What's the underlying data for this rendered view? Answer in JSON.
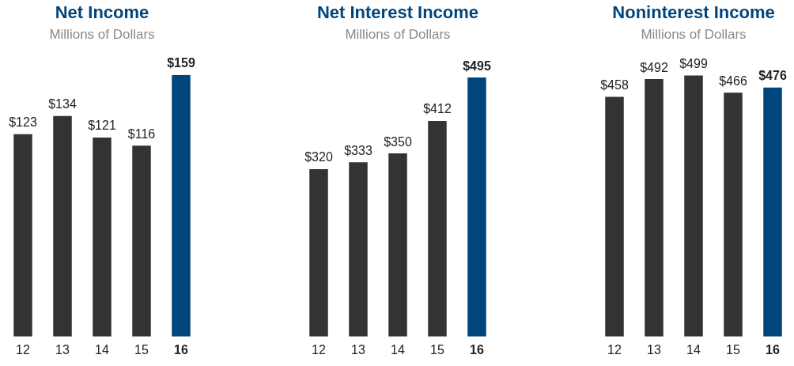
{
  "chart_data": [
    {
      "type": "bar",
      "title": "Net Income",
      "subtitle": "Millions of Dollars",
      "categories": [
        "12",
        "13",
        "14",
        "15",
        "16"
      ],
      "values": [
        123,
        134,
        121,
        116,
        159
      ],
      "value_labels": [
        "$123",
        "$134",
        "$121",
        "$116",
        "$159"
      ],
      "colors": [
        "#333333",
        "#333333",
        "#333333",
        "#333333",
        "#00457c"
      ],
      "ylim": [
        0,
        159
      ],
      "tick_labels": "x",
      "grid": false,
      "legend": false
    },
    {
      "type": "bar",
      "title": "Net Interest Income",
      "subtitle": "Millions of Dollars",
      "categories": [
        "12",
        "13",
        "14",
        "15",
        "16"
      ],
      "values": [
        320,
        333,
        350,
        412,
        495
      ],
      "value_labels": [
        "$320",
        "$333",
        "$350",
        "$412",
        "$495"
      ],
      "colors": [
        "#333333",
        "#333333",
        "#333333",
        "#333333",
        "#00457c"
      ],
      "tick_labels": "x",
      "grid": false,
      "legend": false
    },
    {
      "type": "bar",
      "title": "Noninterest Income",
      "subtitle": "Millions of Dollars",
      "categories": [
        "12",
        "13",
        "14",
        "15",
        "16"
      ],
      "values": [
        458,
        492,
        499,
        466,
        476
      ],
      "value_labels": [
        "$458",
        "$492",
        "$499",
        "$466",
        "$476"
      ],
      "colors": [
        "#333333",
        "#333333",
        "#333333",
        "#333333",
        "#00457c"
      ],
      "tick_labels": "x",
      "grid": false,
      "legend": false
    }
  ]
}
